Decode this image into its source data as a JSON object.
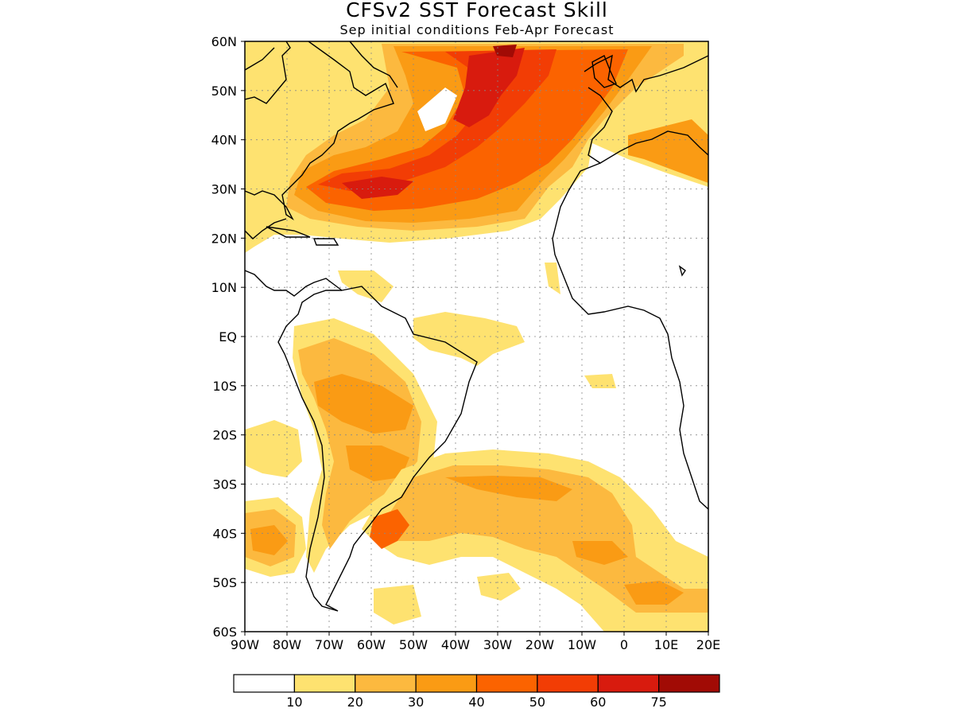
{
  "title": "CFSv2 SST Forecast Skill",
  "subtitle": "Sep initial conditions   Feb-Apr Forecast",
  "lat_labels": [
    "60N",
    "50N",
    "40N",
    "30N",
    "20N",
    "10N",
    "EQ",
    "10S",
    "20S",
    "30S",
    "40S",
    "50S",
    "60S"
  ],
  "lon_labels": [
    "90W",
    "80W",
    "70W",
    "60W",
    "50W",
    "40W",
    "30W",
    "20W",
    "10W",
    "0",
    "10E",
    "20E"
  ],
  "map_extent": {
    "lon": [
      -90,
      20
    ],
    "lat": [
      -60,
      60
    ]
  },
  "gridlines": "dotted",
  "colorbar": {
    "labels": [
      "10",
      "20",
      "30",
      "40",
      "50",
      "60",
      "75"
    ],
    "colors": [
      "#ffffff",
      "#fee270",
      "#fcb93f",
      "#fa9b14",
      "#fb6300",
      "#f23d05",
      "#d81b0e",
      "#a10b05"
    ]
  },
  "features": {
    "land_color": "#ffffff",
    "coastline_color": "#000000"
  }
}
